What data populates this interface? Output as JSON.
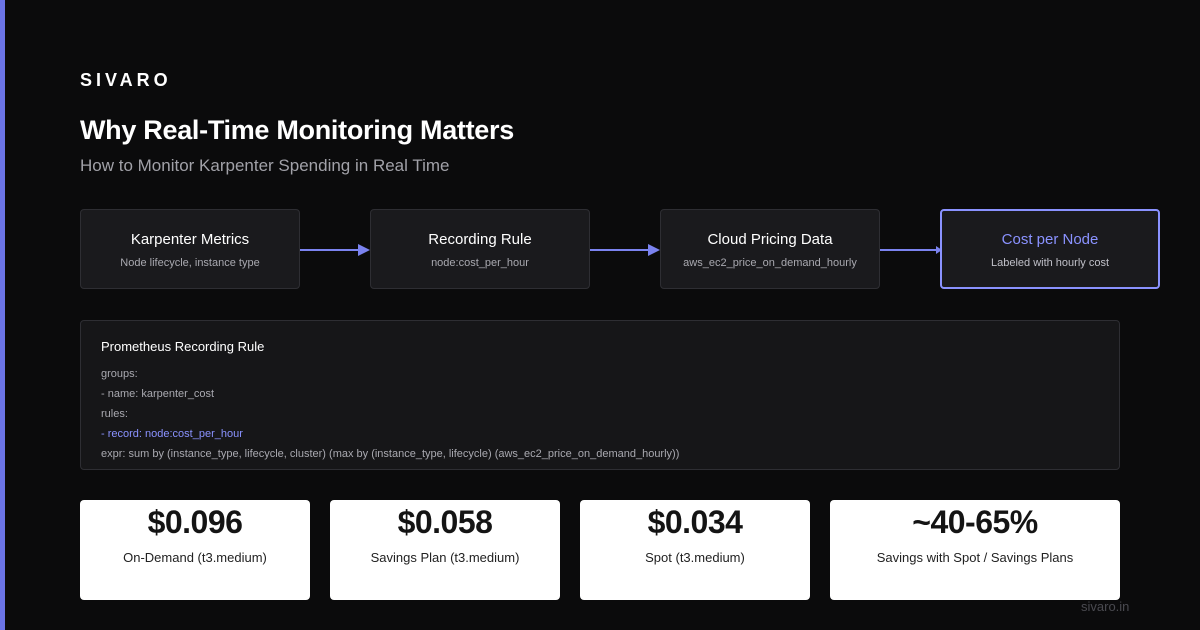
{
  "brand": "SIVARO",
  "title": "Why Real-Time Monitoring Matters",
  "subtitle": "How to Monitor Karpenter Spending in Real Time",
  "flow": [
    {
      "title": "Karpenter Metrics",
      "subtitle": "Node lifecycle, instance type"
    },
    {
      "title": "Recording Rule",
      "subtitle": "node:cost_per_hour"
    },
    {
      "title": "Cloud Pricing Data",
      "subtitle": "aws_ec2_price_on_demand_hourly"
    },
    {
      "title": "Cost per Node",
      "subtitle": "Labeled with hourly cost"
    }
  ],
  "rule_box": {
    "title": "Prometheus Recording Rule",
    "lines": [
      "groups:",
      "- name: karpenter_cost",
      "rules:",
      "- record: node:cost_per_hour",
      "expr: sum by (instance_type, lifecycle, cluster) (max by (instance_type, lifecycle) (aws_ec2_price_on_demand_hourly))"
    ]
  },
  "stats": [
    {
      "value": "$0.096",
      "label": "On-Demand (t3.medium)"
    },
    {
      "value": "$0.058",
      "label": "Savings Plan (t3.medium)"
    },
    {
      "value": "$0.034",
      "label": "Spot (t3.medium)"
    },
    {
      "value": "~40-65%",
      "label": "Savings with Spot / Savings Plans"
    }
  ],
  "footer": "sivaro.in",
  "colors": {
    "background": "#0b0b0c",
    "accent": "#8a92ff",
    "accent_bar": "#6b74e6",
    "card": "#1a1a1d",
    "stat_card": "#ffffff"
  },
  "icons": [
    "arrow-right-icon"
  ]
}
